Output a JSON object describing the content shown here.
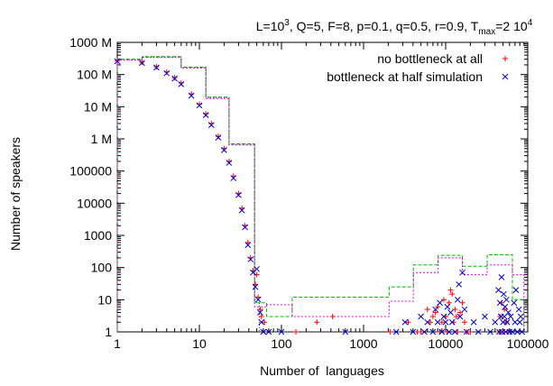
{
  "chart_data": {
    "type": "scatter",
    "title_parts": {
      "p1": "L=10",
      "sup1": "3",
      "p2": ", Q=5, F=8, p=0.1, q=0.5, r=0.9, T",
      "sub": "max",
      "p3": "=2 10",
      "sup2": "4"
    },
    "xlabel": "Number of  languages",
    "ylabel": "Number of speakers",
    "x_scale": "log",
    "y_scale": "log",
    "xlim": [
      1,
      100000
    ],
    "ylim": [
      1,
      1000000000
    ],
    "x_ticks": [
      {
        "v": 1,
        "label": "1"
      },
      {
        "v": 10,
        "label": "10"
      },
      {
        "v": 100,
        "label": "100"
      },
      {
        "v": 1000,
        "label": "1000"
      },
      {
        "v": 10000,
        "label": "10000"
      },
      {
        "v": 100000,
        "label": "100000"
      }
    ],
    "y_ticks": [
      {
        "v": 1,
        "label": "1"
      },
      {
        "v": 10,
        "label": "10"
      },
      {
        "v": 100,
        "label": "100"
      },
      {
        "v": 1000,
        "label": "1000"
      },
      {
        "v": 10000,
        "label": "10000"
      },
      {
        "v": 100000,
        "label": "100000"
      },
      {
        "v": 1000000,
        "label": "1 M"
      },
      {
        "v": 10000000,
        "label": "10 M"
      },
      {
        "v": 100000000,
        "label": "100 M"
      },
      {
        "v": 1000000000,
        "label": "1000 M"
      }
    ],
    "legend_position": "top-right",
    "colors": {
      "red": "#ff0000",
      "blue": "#0000cc",
      "green": "#00bb00",
      "magenta": "#dd00dd",
      "dark": "#444444"
    },
    "series": [
      {
        "name": "no bottleneck at all",
        "marker": "plus",
        "color": "#ff0000",
        "points": [
          [
            1,
            270000000
          ],
          [
            2,
            240000000
          ],
          [
            3,
            175000000
          ],
          [
            4,
            120000000
          ],
          [
            5,
            80000000
          ],
          [
            6,
            55000000
          ],
          [
            8,
            25000000
          ],
          [
            10,
            12000000
          ],
          [
            12,
            6000000
          ],
          [
            14,
            3000000
          ],
          [
            17,
            1200000
          ],
          [
            20,
            500000
          ],
          [
            23,
            200000
          ],
          [
            26,
            70000
          ],
          [
            30,
            20000
          ],
          [
            33,
            7000
          ],
          [
            36,
            2000
          ],
          [
            39,
            600
          ],
          [
            42,
            200
          ],
          [
            45,
            80
          ],
          [
            48,
            30
          ],
          [
            50,
            60
          ],
          [
            52,
            12
          ],
          [
            55,
            5
          ],
          [
            57,
            3
          ],
          [
            62,
            2
          ],
          [
            150,
            1
          ],
          [
            270,
            2
          ],
          [
            420,
            3
          ],
          [
            2100,
            1
          ],
          [
            3500,
            2
          ],
          [
            4500,
            1
          ],
          [
            5000,
            1
          ],
          [
            6000,
            5
          ],
          [
            6500,
            2
          ],
          [
            7000,
            3
          ],
          [
            7500,
            4
          ],
          [
            8000,
            6
          ],
          [
            8500,
            1
          ],
          [
            9000,
            2
          ],
          [
            9500,
            10
          ],
          [
            10000,
            3
          ],
          [
            10500,
            1
          ],
          [
            11000,
            8
          ],
          [
            11500,
            20
          ],
          [
            12000,
            15
          ],
          [
            12500,
            2
          ],
          [
            13000,
            5
          ],
          [
            13500,
            3
          ],
          [
            14000,
            1
          ],
          [
            15000,
            4
          ],
          [
            16000,
            8
          ],
          [
            17000,
            2
          ],
          [
            18000,
            1
          ],
          [
            20000,
            1
          ],
          [
            45000,
            1
          ],
          [
            46000,
            3
          ],
          [
            48000,
            8
          ],
          [
            50000,
            1
          ],
          [
            52000,
            5
          ],
          [
            55000,
            2
          ],
          [
            57000,
            1
          ]
        ]
      },
      {
        "name": "bottleneck at half simulation",
        "marker": "cross",
        "color": "#0000cc",
        "points": [
          [
            1,
            260000000
          ],
          [
            2,
            230000000
          ],
          [
            3,
            165000000
          ],
          [
            4,
            110000000
          ],
          [
            5,
            75000000
          ],
          [
            6,
            50000000
          ],
          [
            8,
            22000000
          ],
          [
            10,
            11000000
          ],
          [
            12,
            5500000
          ],
          [
            14,
            2700000
          ],
          [
            17,
            1100000
          ],
          [
            20,
            450000
          ],
          [
            23,
            180000
          ],
          [
            26,
            60000
          ],
          [
            30,
            18000
          ],
          [
            33,
            6000
          ],
          [
            36,
            1800
          ],
          [
            39,
            500
          ],
          [
            42,
            180
          ],
          [
            45,
            70
          ],
          [
            48,
            25
          ],
          [
            50,
            90
          ],
          [
            52,
            10
          ],
          [
            55,
            4
          ],
          [
            57,
            2
          ],
          [
            60,
            1
          ],
          [
            70,
            1
          ],
          [
            100,
            1
          ],
          [
            600,
            1
          ],
          [
            2500,
            1
          ],
          [
            3200,
            2
          ],
          [
            4000,
            1
          ],
          [
            5000,
            3
          ],
          [
            5500,
            1
          ],
          [
            6000,
            2
          ],
          [
            7000,
            1
          ],
          [
            7500,
            5
          ],
          [
            8000,
            2
          ],
          [
            8500,
            8
          ],
          [
            9000,
            1
          ],
          [
            9500,
            3
          ],
          [
            10000,
            2
          ],
          [
            10500,
            6
          ],
          [
            11000,
            1
          ],
          [
            11500,
            4
          ],
          [
            12000,
            2
          ],
          [
            13000,
            1
          ],
          [
            14000,
            10
          ],
          [
            14500,
            30
          ],
          [
            15000,
            3
          ],
          [
            16000,
            70
          ],
          [
            17000,
            5
          ],
          [
            18000,
            1
          ],
          [
            22000,
            2
          ],
          [
            25000,
            1
          ],
          [
            30000,
            3
          ],
          [
            35000,
            1
          ],
          [
            40000,
            2
          ],
          [
            44000,
            20
          ],
          [
            45000,
            1
          ],
          [
            46000,
            8
          ],
          [
            47000,
            3
          ],
          [
            48000,
            50
          ],
          [
            49000,
            1
          ],
          [
            50000,
            2
          ],
          [
            51000,
            15
          ],
          [
            52000,
            3
          ],
          [
            53000,
            6
          ],
          [
            54000,
            1
          ],
          [
            55000,
            10
          ],
          [
            56000,
            2
          ],
          [
            58000,
            4
          ],
          [
            60000,
            1
          ],
          [
            62000,
            3
          ],
          [
            65000,
            1
          ],
          [
            68000,
            8
          ],
          [
            70000,
            2
          ],
          [
            72000,
            20
          ],
          [
            75000,
            1
          ],
          [
            78000,
            5
          ],
          [
            80000,
            2
          ],
          [
            82000,
            3
          ],
          [
            85000,
            1
          ]
        ]
      }
    ],
    "histogram_outlines": [
      {
        "color": "#00bb00",
        "dash": "4,2",
        "bins": [
          [
            1,
            2,
            300000000
          ],
          [
            2,
            6,
            360000000
          ],
          [
            6,
            12,
            170000000
          ],
          [
            12,
            23,
            20000000
          ],
          [
            23,
            47,
            700000
          ],
          [
            47,
            54,
            8
          ],
          [
            54,
            66,
            8
          ],
          [
            66,
            135,
            3
          ],
          [
            135,
            2050,
            12
          ],
          [
            2050,
            4040,
            25
          ],
          [
            4040,
            8100,
            120
          ],
          [
            8100,
            16000,
            240
          ],
          [
            16000,
            32000,
            110
          ],
          [
            32000,
            65000,
            250
          ],
          [
            65000,
            90000,
            10
          ]
        ]
      },
      {
        "color": "#dd00dd",
        "dash": "2,2",
        "bins": [
          [
            1,
            2,
            280000000
          ],
          [
            2,
            6,
            340000000
          ],
          [
            6,
            12,
            160000000
          ],
          [
            12,
            23,
            18000000
          ],
          [
            23,
            47,
            650000
          ],
          [
            47,
            54,
            6
          ],
          [
            54,
            66,
            6
          ],
          [
            66,
            135,
            7
          ],
          [
            135,
            2050,
            3
          ],
          [
            2050,
            4040,
            9
          ],
          [
            4040,
            8100,
            70
          ],
          [
            8100,
            16000,
            200
          ],
          [
            16000,
            32000,
            60
          ],
          [
            32000,
            65000,
            120
          ],
          [
            65000,
            90000,
            60
          ]
        ]
      },
      {
        "color": "#444444",
        "dash": "1,2",
        "bins": [
          [
            1,
            2,
            290000000
          ],
          [
            2,
            6,
            350000000
          ],
          [
            6,
            12,
            165000000
          ],
          [
            12,
            23,
            19000000
          ],
          [
            23,
            47,
            680000
          ],
          [
            47,
            54,
            10
          ],
          [
            54,
            66,
            1
          ],
          [
            66,
            135,
            1
          ],
          [
            135,
            2050,
            1
          ],
          [
            2050,
            4040,
            1
          ],
          [
            4040,
            8100,
            1
          ],
          [
            8100,
            16000,
            1
          ],
          [
            16000,
            32000,
            1
          ],
          [
            32000,
            65000,
            1
          ],
          [
            65000,
            90000,
            1
          ]
        ]
      }
    ]
  }
}
